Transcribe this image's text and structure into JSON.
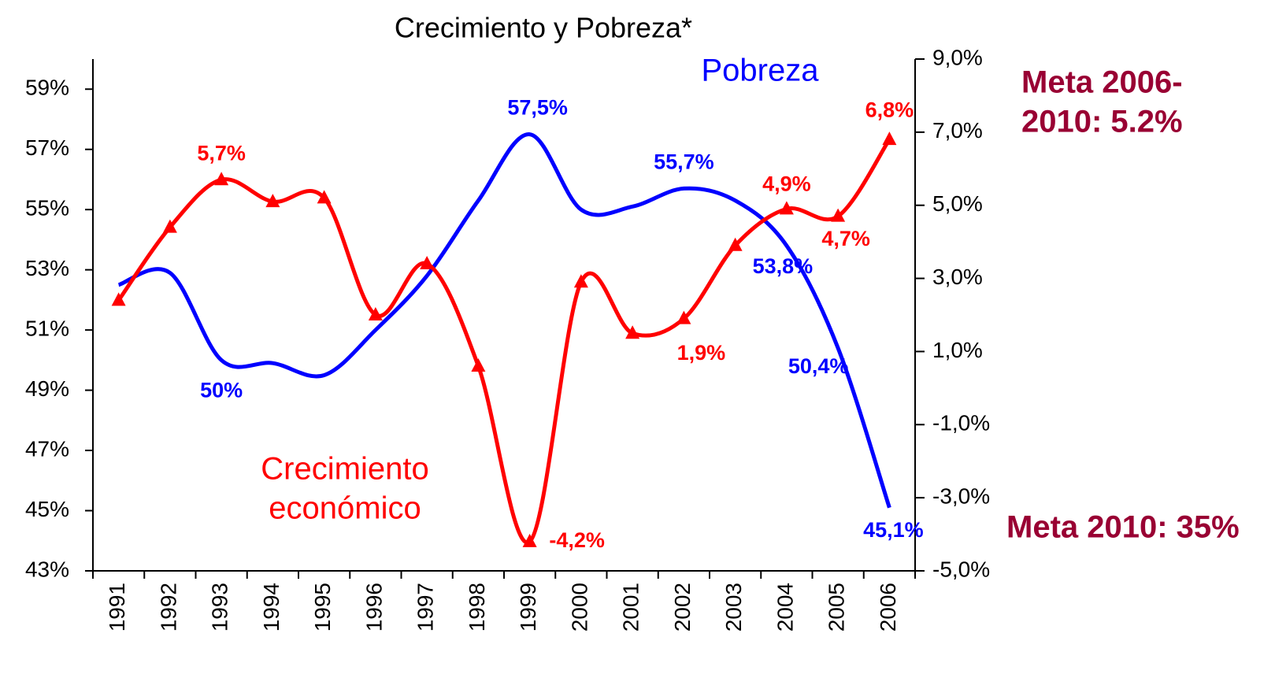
{
  "chart_data": {
    "type": "line",
    "title": "Crecimiento y Pobreza*",
    "categories": [
      "1991",
      "1992",
      "1993",
      "1994",
      "1995",
      "1996",
      "1997",
      "1998",
      "1999",
      "2000",
      "2001",
      "2002",
      "2003",
      "2004",
      "2005",
      "2006"
    ],
    "series": [
      {
        "name": "Pobreza",
        "color": "#0000ff",
        "axis": "y",
        "values": [
          52.5,
          52.9,
          50.0,
          49.9,
          49.5,
          51.0,
          52.8,
          55.3,
          57.5,
          55.0,
          55.1,
          55.7,
          55.3,
          53.8,
          50.4,
          45.1
        ],
        "value_labels": [
          null,
          null,
          "50%",
          null,
          null,
          null,
          null,
          null,
          "57,5%",
          null,
          null,
          "55,7%",
          null,
          "53,8%",
          "50,4%",
          "45,1%"
        ]
      },
      {
        "name": "Crecimiento económico",
        "color": "#ff0000",
        "axis": "y2",
        "values": [
          2.4,
          4.4,
          5.7,
          5.1,
          5.2,
          2.0,
          3.4,
          0.6,
          -4.2,
          2.9,
          1.5,
          1.9,
          3.9,
          4.9,
          4.7,
          6.8
        ],
        "value_labels": [
          null,
          null,
          "5,7%",
          null,
          null,
          null,
          null,
          null,
          "-4,2%",
          null,
          null,
          "1,9%",
          null,
          "4,9%",
          "4,7%",
          "6,8%"
        ]
      }
    ],
    "ylim": [
      43,
      60
    ],
    "yticks": [
      {
        "value": 43,
        "label": "43%"
      },
      {
        "value": 45,
        "label": "45%"
      },
      {
        "value": 47,
        "label": "47%"
      },
      {
        "value": 49,
        "label": "49%"
      },
      {
        "value": 51,
        "label": "51%"
      },
      {
        "value": 53,
        "label": "53%"
      },
      {
        "value": 55,
        "label": "55%"
      },
      {
        "value": 57,
        "label": "57%"
      },
      {
        "value": 59,
        "label": "59%"
      }
    ],
    "y2lim": [
      -5,
      9
    ],
    "y2ticks": [
      {
        "value": -5,
        "label": "-5,0%"
      },
      {
        "value": -3,
        "label": "-3,0%"
      },
      {
        "value": -1,
        "label": "-1,0%"
      },
      {
        "value": 1,
        "label": "1,0%"
      },
      {
        "value": 3,
        "label": "3,0%"
      },
      {
        "value": 5,
        "label": "5,0%"
      },
      {
        "value": 7,
        "label": "7,0%"
      },
      {
        "value": 9,
        "label": "9,0%"
      }
    ],
    "annotations": [
      {
        "lines": [
          "Pobreza"
        ],
        "color": "#0000ff"
      },
      {
        "lines": [
          "Crecimiento",
          "económico"
        ],
        "color": "#ff0000"
      },
      {
        "lines": [
          "Meta 2006-",
          "2010: 5.2%"
        ],
        "color": "#990033"
      },
      {
        "lines": [
          "Meta 2010: 35%"
        ],
        "color": "#990033"
      }
    ]
  }
}
